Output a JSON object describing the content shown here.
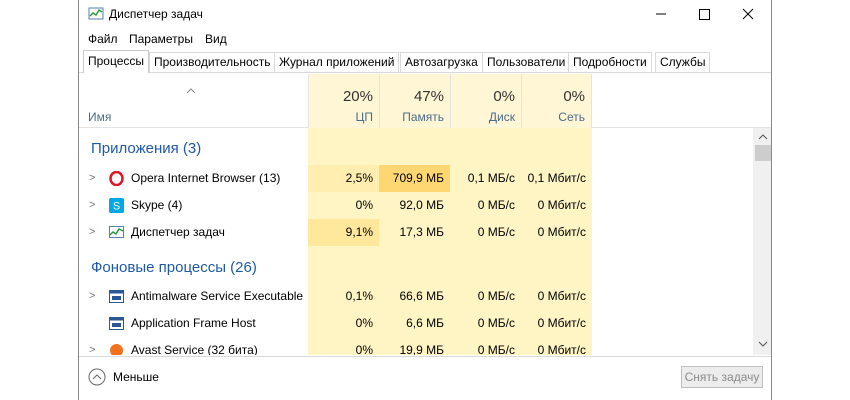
{
  "window": {
    "title": "Диспетчер задач"
  },
  "menu": [
    "Файл",
    "Параметры",
    "Вид"
  ],
  "tabs": [
    "Процессы",
    "Производительность",
    "Журнал приложений",
    "Автозагрузка",
    "Пользователи",
    "Подробности",
    "Службы"
  ],
  "table": {
    "name_header": "Имя",
    "columns": [
      {
        "percent": "20%",
        "label": "ЦП"
      },
      {
        "percent": "47%",
        "label": "Память"
      },
      {
        "percent": "0%",
        "label": "Диск"
      },
      {
        "percent": "0%",
        "label": "Сеть"
      }
    ],
    "groups": [
      {
        "title": "Приложения (3)",
        "rows": [
          {
            "name": "Opera Internet Browser (13)",
            "cells": [
              "2,5%",
              "709,9 МБ",
              "0,1 МБ/с",
              "0,1 Мбит/с"
            ]
          },
          {
            "name": "Skype (4)",
            "cells": [
              "0%",
              "92,0 МБ",
              "0 МБ/с",
              "0 Мбит/с"
            ]
          },
          {
            "name": "Диспетчер задач",
            "cells": [
              "9,1%",
              "17,3 МБ",
              "0 МБ/с",
              "0 Мбит/с"
            ]
          }
        ]
      },
      {
        "title": "Фоновые процессы (26)",
        "rows": [
          {
            "name": "Antimalware Service Executable",
            "cells": [
              "0,1%",
              "66,6 МБ",
              "0 МБ/с",
              "0 Мбит/с"
            ]
          },
          {
            "name": "Application Frame Host",
            "cells": [
              "0%",
              "6,6 МБ",
              "0 МБ/с",
              "0 Мбит/с"
            ]
          },
          {
            "name": "Avast Service (32 бита)",
            "cells": [
              "0%",
              "19,9 МБ",
              "0 МБ/с",
              "0 Мбит/с"
            ]
          }
        ]
      }
    ]
  },
  "footer": {
    "less": "Меньше",
    "end_task": "Снять задачу"
  }
}
